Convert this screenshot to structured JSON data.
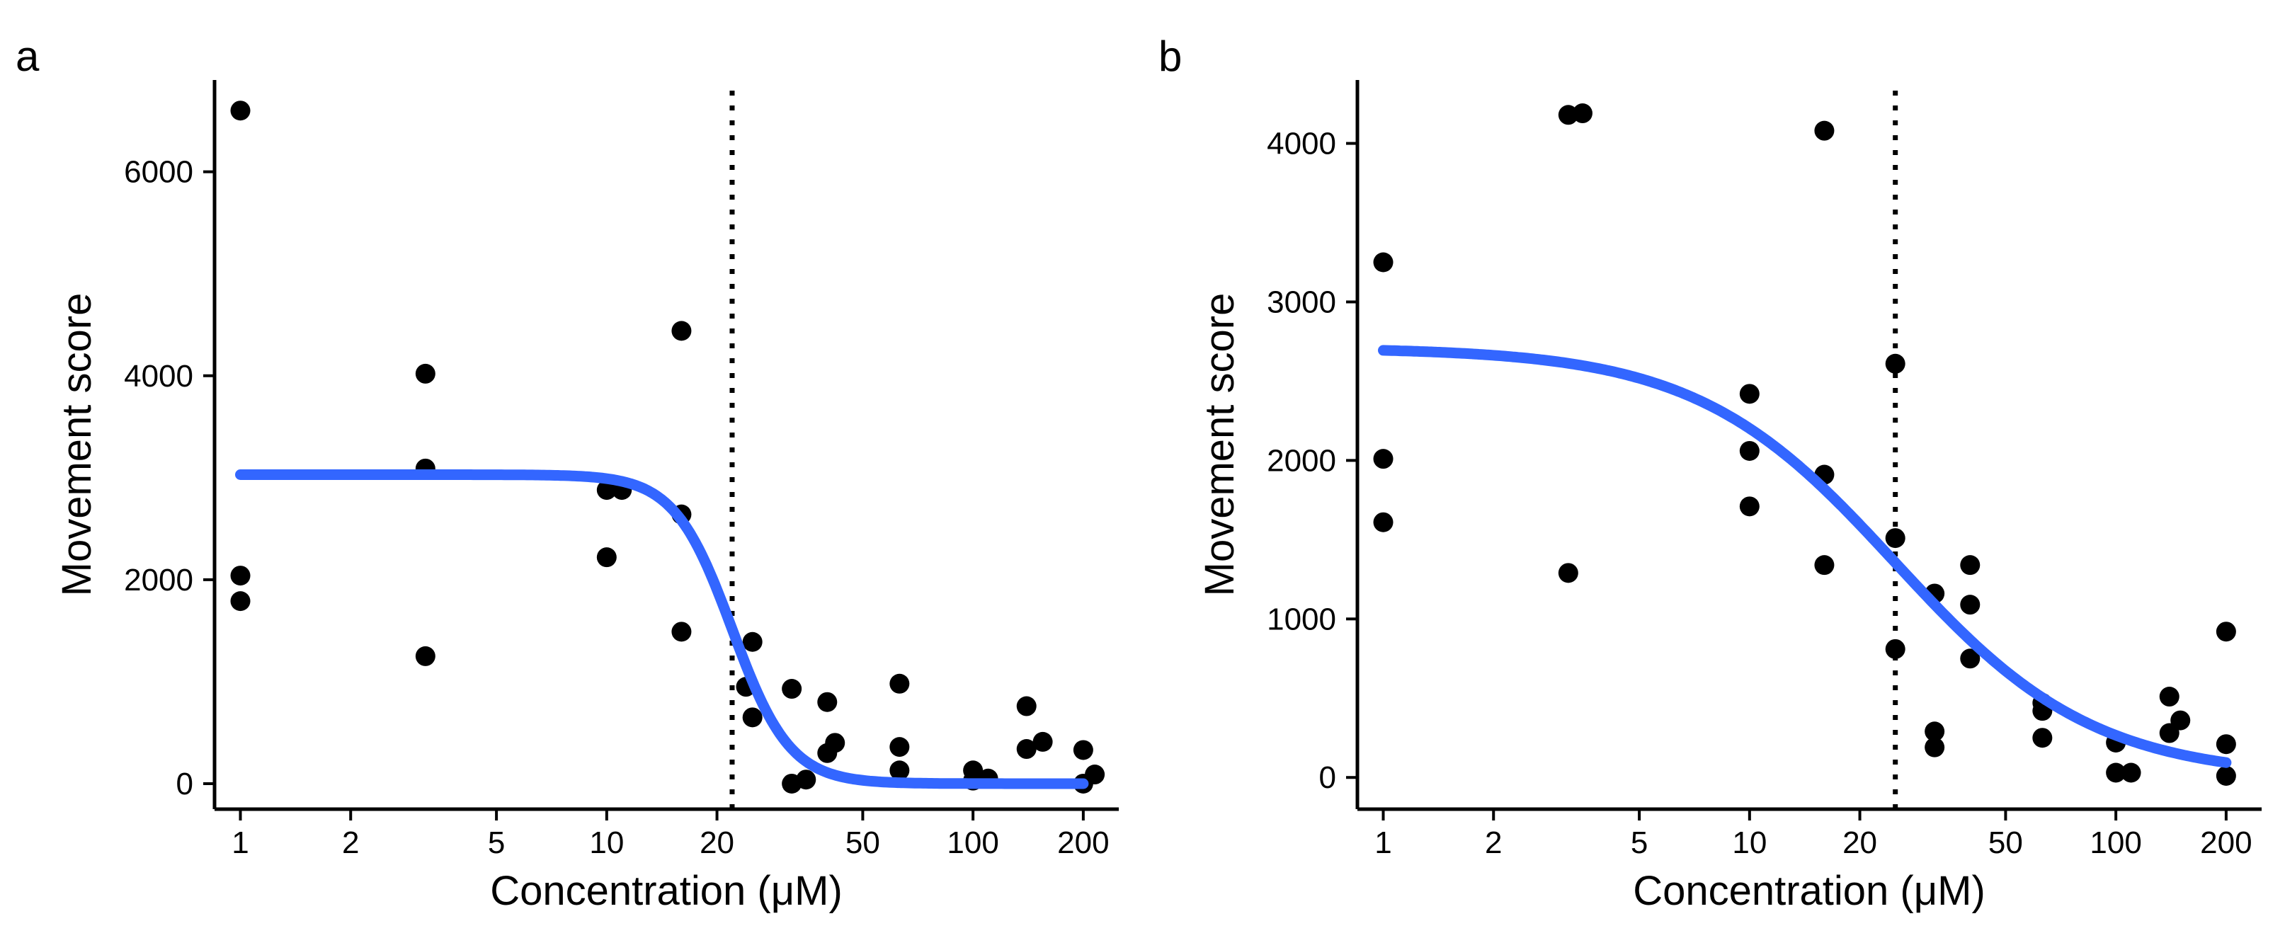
{
  "chart_data": [
    {
      "type": "scatter",
      "panel_label": "a",
      "xlabel": "Concentration (μM)",
      "ylabel": "Movement score",
      "x_scale": "log10",
      "xlim": [
        0.85,
        250
      ],
      "ylim": [
        -250,
        6900
      ],
      "x_ticks": [
        1,
        2,
        5,
        10,
        20,
        50,
        100,
        200
      ],
      "x_tick_labels": [
        "1",
        "2",
        "5",
        "10",
        "20",
        "50",
        "100",
        "200"
      ],
      "y_ticks": [
        0,
        2000,
        4000,
        6000
      ],
      "y_tick_labels": [
        "0",
        "2000",
        "4000",
        "6000"
      ],
      "points": [
        {
          "x": 1,
          "y": 6600
        },
        {
          "x": 1,
          "y": 2040
        },
        {
          "x": 1,
          "y": 1790
        },
        {
          "x": 3.2,
          "y": 4020
        },
        {
          "x": 3.2,
          "y": 3090
        },
        {
          "x": 3.2,
          "y": 1250
        },
        {
          "x": 10,
          "y": 2880
        },
        {
          "x": 11,
          "y": 2880
        },
        {
          "x": 10,
          "y": 2220
        },
        {
          "x": 16,
          "y": 4440
        },
        {
          "x": 16,
          "y": 2640
        },
        {
          "x": 16,
          "y": 1490
        },
        {
          "x": 25,
          "y": 1390
        },
        {
          "x": 24,
          "y": 950
        },
        {
          "x": 25,
          "y": 650
        },
        {
          "x": 32,
          "y": 930
        },
        {
          "x": 32,
          "y": 0
        },
        {
          "x": 35,
          "y": 40
        },
        {
          "x": 40,
          "y": 800
        },
        {
          "x": 42,
          "y": 400
        },
        {
          "x": 40,
          "y": 300
        },
        {
          "x": 63,
          "y": 980
        },
        {
          "x": 63,
          "y": 360
        },
        {
          "x": 63,
          "y": 130
        },
        {
          "x": 100,
          "y": 130
        },
        {
          "x": 100,
          "y": 30
        },
        {
          "x": 110,
          "y": 50
        },
        {
          "x": 140,
          "y": 760
        },
        {
          "x": 155,
          "y": 410
        },
        {
          "x": 140,
          "y": 340
        },
        {
          "x": 200,
          "y": 330
        },
        {
          "x": 215,
          "y": 90
        },
        {
          "x": 200,
          "y": 0
        }
      ],
      "fit_curve": {
        "model": "four-parameter logistic",
        "top": 3030,
        "bottom": 0,
        "ec50": 22,
        "hill": 5.5,
        "x_range": [
          1,
          200
        ],
        "color": "#3366ff"
      },
      "vline": {
        "x": 22,
        "style": "dotted"
      },
      "point_color": "#000000"
    },
    {
      "type": "scatter",
      "panel_label": "b",
      "xlabel": "Concentration (μM)",
      "ylabel": "Movement score",
      "x_scale": "log10",
      "xlim": [
        0.85,
        250
      ],
      "ylim": [
        -200,
        4400
      ],
      "x_ticks": [
        1,
        2,
        5,
        10,
        20,
        50,
        100,
        200
      ],
      "x_tick_labels": [
        "1",
        "2",
        "5",
        "10",
        "20",
        "50",
        "100",
        "200"
      ],
      "y_ticks": [
        0,
        1000,
        2000,
        3000,
        4000
      ],
      "y_tick_labels": [
        "0",
        "1000",
        "2000",
        "3000",
        "4000"
      ],
      "points": [
        {
          "x": 1,
          "y": 3250
        },
        {
          "x": 1,
          "y": 2010
        },
        {
          "x": 1,
          "y": 1610
        },
        {
          "x": 3.2,
          "y": 4180
        },
        {
          "x": 3.5,
          "y": 4190
        },
        {
          "x": 3.2,
          "y": 1290
        },
        {
          "x": 10,
          "y": 2420
        },
        {
          "x": 10,
          "y": 2060
        },
        {
          "x": 10,
          "y": 1710
        },
        {
          "x": 16,
          "y": 4080
        },
        {
          "x": 16,
          "y": 1910
        },
        {
          "x": 16,
          "y": 1340
        },
        {
          "x": 25,
          "y": 2610
        },
        {
          "x": 25,
          "y": 1510
        },
        {
          "x": 25,
          "y": 810
        },
        {
          "x": 32,
          "y": 1160
        },
        {
          "x": 32,
          "y": 290
        },
        {
          "x": 32,
          "y": 190
        },
        {
          "x": 40,
          "y": 1340
        },
        {
          "x": 40,
          "y": 1090
        },
        {
          "x": 40,
          "y": 750
        },
        {
          "x": 63,
          "y": 470
        },
        {
          "x": 63,
          "y": 420
        },
        {
          "x": 63,
          "y": 250
        },
        {
          "x": 100,
          "y": 220
        },
        {
          "x": 100,
          "y": 30
        },
        {
          "x": 110,
          "y": 30
        },
        {
          "x": 140,
          "y": 510
        },
        {
          "x": 150,
          "y": 360
        },
        {
          "x": 140,
          "y": 280
        },
        {
          "x": 200,
          "y": 920
        },
        {
          "x": 200,
          "y": 210
        },
        {
          "x": 200,
          "y": 10
        }
      ],
      "fit_curve": {
        "model": "four-parameter logistic",
        "top": 2710,
        "bottom": 0,
        "ec50": 25,
        "hill": 1.6,
        "x_range": [
          1,
          200
        ],
        "color": "#3366ff"
      },
      "vline": {
        "x": 25,
        "style": "dotted"
      },
      "point_color": "#000000"
    }
  ]
}
